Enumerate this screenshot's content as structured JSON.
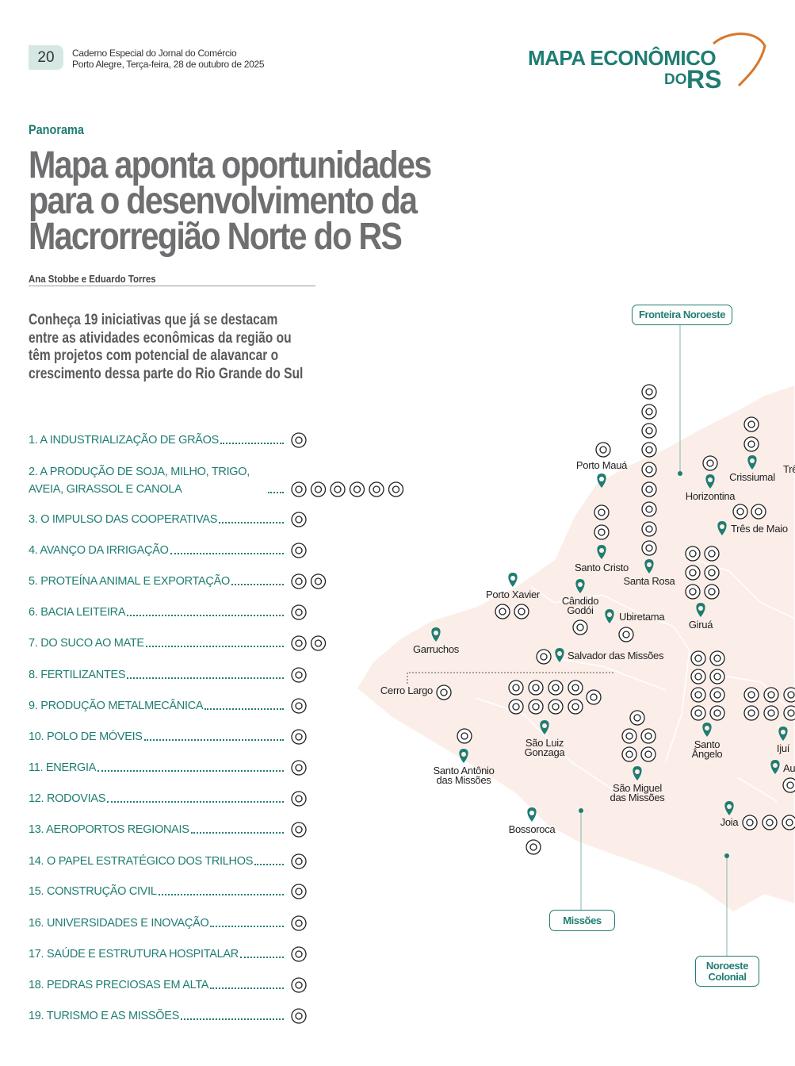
{
  "header": {
    "page_number": "20",
    "publication": "Caderno Especial do Jornal do Comércio",
    "date": "Porto Alegre, Terça-feira, 28 de outubro de 2025",
    "logo_top": "MAPA ECONÔMICO",
    "logo_do": "DO",
    "logo_rs": "RS"
  },
  "article": {
    "section": "Panorama",
    "title_lines": [
      "Mapa aponta oportunidades",
      "para o desenvolvimento da",
      "Macrorregião Norte do RS"
    ],
    "authors": "Ana Stobbe e Eduardo Torres",
    "intro_lines": [
      "Conheça 19 iniciativas que já se destacam",
      "entre as atividades econômicas da região ou",
      "têm projetos com potencial de alavancar o",
      "crescimento dessa parte do Rio Grande do Sul"
    ],
    "items": [
      "1. A INDUSTRIALIZAÇÃO DE GRÃOS",
      "2. A PRODUÇÃO DE SOJA, MILHO, TRIGO, AVEIA, GIRASSOL E CANOLA",
      "3. O IMPULSO DAS COOPERATIVAS",
      "4. AVANÇO DA IRRIGAÇÃO",
      "5. PROTEÍNA ANIMAL E EXPORTAÇÃO",
      "6. BACIA LEITEIRA",
      "7. DO SUCO AO MATE",
      "8. FERTILIZANTES",
      "9. PRODUÇÃO METALMECÂNICA",
      "10. POLO DE MÓVEIS",
      "11. ENERGIA",
      "12. RODOVIAS",
      "13. AEROPORTOS REGIONAIS",
      "14. O PAPEL ESTRATÉGICO DOS TRILHOS",
      "15. CONSTRUÇÃO CIVIL",
      "16. UNIVERSIDADES E INOVAÇÃO",
      "17. SAÚDE E ESTRUTURA HOSPITALAR",
      "18. PEDRAS PRECIOSAS EM ALTA",
      "19. TURISMO E AS MISSÕES"
    ]
  },
  "map": {
    "regions": [
      "Fronteira Noroeste",
      "Missões",
      "Noroeste Colonial"
    ],
    "cities": [
      "Porto Mauá",
      "Crissiumal",
      "Horizontina",
      "Três de Maio",
      "Trê",
      "Santo Cristo",
      "Santa Rosa",
      "Porto Xavier",
      "Cândido Godói",
      "Ubiretama",
      "Giruá",
      "Garruchos",
      "Salvador das Missões",
      "Cerro Largo",
      "São Luiz Gonzaga",
      "Santo Antônio das Missões",
      "São Miguel das Missões",
      "Santo Ângelo",
      "Ijuí",
      "Au",
      "Joia",
      "Bossoroca"
    ]
  }
}
